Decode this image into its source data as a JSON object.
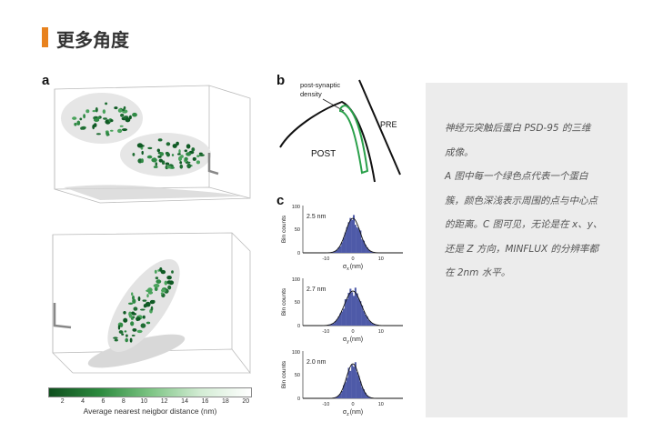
{
  "header": {
    "title": "更多角度"
  },
  "figure": {
    "panel_a": "a",
    "panel_b": "b",
    "panel_c": "c",
    "colorbar": {
      "ticks": [
        "2",
        "4",
        "6",
        "8",
        "10",
        "12",
        "14",
        "16",
        "18",
        "20"
      ],
      "label": "Average nearest neigbor distance (nm)"
    },
    "schematic": {
      "label_psd": "post-synaptic",
      "label_density": "density",
      "label_pre": "PRE",
      "label_post": "POST"
    },
    "histograms": [
      {
        "precision": "2.5 nm",
        "axis_label": "σx (nm)",
        "axis_var": "σ",
        "axis_sub": "x",
        "axis_unit": "(nm)"
      },
      {
        "precision": "2.7 nm",
        "axis_label": "σy (nm)",
        "axis_var": "σ",
        "axis_sub": "y",
        "axis_unit": "(nm)"
      },
      {
        "precision": "2.0 nm",
        "axis_label": "σz (nm)",
        "axis_var": "σ",
        "axis_sub": "z",
        "axis_unit": "(nm)"
      }
    ],
    "hist_common": {
      "ylabel": "Bin counts",
      "y100": "100",
      "y50": "50",
      "y0": "0",
      "xm10": "-10",
      "x0": "0",
      "x10": "10"
    }
  },
  "description": {
    "lines": [
      "神经元突触后蛋白 PSD-95 的三维",
      "成像。",
      "A 图中每一个绿色点代表一个蛋白",
      "簇，颜色深浅表示周围的点与中心点",
      "的距离。C 图可见，无论是在 x、y、",
      "还是 Z 方向，MINFLUX 的分辨率都",
      "在 2nm 水平。"
    ]
  },
  "colors": {
    "accent": "#e8821e",
    "cluster_dark": "#0f5a24",
    "hist_fill": "#4e5aa8",
    "panel_bg": "#ececec"
  }
}
